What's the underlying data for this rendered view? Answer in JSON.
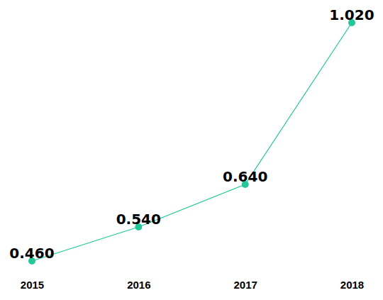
{
  "chart_data": {
    "type": "line",
    "categories": [
      "2015",
      "2016",
      "2017",
      "2018"
    ],
    "values": [
      0.46,
      0.54,
      0.64,
      1.02
    ],
    "value_labels": [
      "0.460",
      "0.540",
      "0.640",
      "1.020"
    ],
    "color": "#20c997",
    "marker": "circle",
    "ylim": [
      0.46,
      1.02
    ],
    "data_labels": true,
    "tick_labels": "x"
  }
}
